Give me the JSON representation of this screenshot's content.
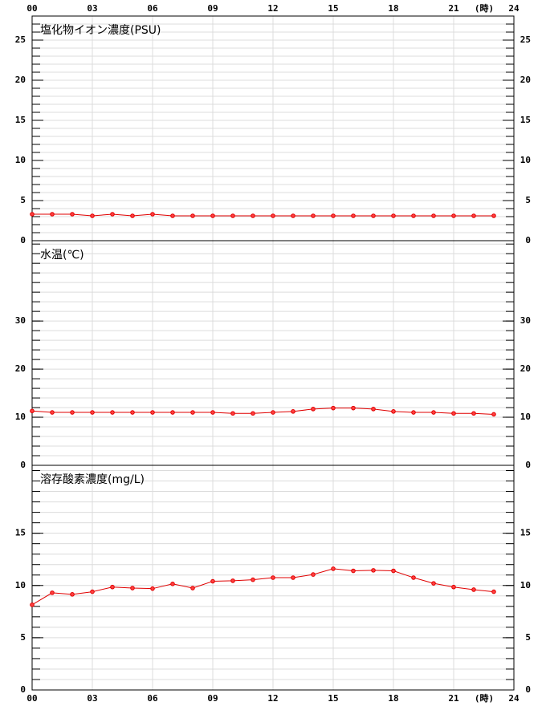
{
  "chart_data": [
    {
      "type": "line",
      "title": "塩化物イオン濃度(PSU)",
      "xlabel": "(時)",
      "x": [
        0,
        1,
        2,
        3,
        4,
        5,
        6,
        7,
        8,
        9,
        10,
        11,
        12,
        13,
        14,
        15,
        16,
        17,
        18,
        19,
        20,
        21,
        22,
        23
      ],
      "xlim": [
        0,
        24
      ],
      "xticks": [
        {
          "value": 0,
          "label": "00"
        },
        {
          "value": 3,
          "label": "03"
        },
        {
          "value": 6,
          "label": "06"
        },
        {
          "value": 9,
          "label": "09"
        },
        12,
        15,
        18,
        21,
        24
      ],
      "series": [
        {
          "color": "#e00000",
          "values": [
            3.3,
            3.3,
            3.3,
            3.1,
            3.3,
            3.1,
            3.3,
            3.1,
            3.1,
            3.1,
            3.1,
            3.1,
            3.1,
            3.1,
            3.1,
            3.1,
            3.1,
            3.1,
            3.1,
            3.1,
            3.1,
            3.1,
            3.1,
            3.1
          ]
        }
      ],
      "ylim": [
        0,
        28
      ],
      "yticks": [
        0,
        5,
        10,
        15,
        20,
        25
      ],
      "grid": true
    },
    {
      "type": "line",
      "title": "水温(℃)",
      "x": [
        0,
        1,
        2,
        3,
        4,
        5,
        6,
        7,
        8,
        9,
        10,
        11,
        12,
        13,
        14,
        15,
        16,
        17,
        18,
        19,
        20,
        21,
        22,
        23
      ],
      "xlim": [
        0,
        24
      ],
      "xticks": [
        {
          "value": 0,
          "label": "00"
        },
        {
          "value": 3,
          "label": "03"
        },
        {
          "value": 6,
          "label": "06"
        },
        {
          "value": 9,
          "label": "09"
        },
        12,
        15,
        18,
        21,
        24
      ],
      "series": [
        {
          "color": "#e00000",
          "values": [
            11.3,
            11.0,
            11.0,
            11.0,
            11.0,
            11.0,
            11.0,
            11.0,
            11.0,
            11.0,
            10.8,
            10.8,
            11.0,
            11.2,
            11.7,
            11.9,
            11.9,
            11.7,
            11.2,
            11.0,
            11.0,
            10.8,
            10.8,
            10.6
          ]
        }
      ],
      "ylim": [
        0,
        46.7
      ],
      "yticks": [
        0,
        10,
        20,
        30
      ],
      "grid": true
    },
    {
      "type": "line",
      "title": "溶存酸素濃度(mg/L)",
      "xlabel": "(時)",
      "x": [
        0,
        1,
        2,
        3,
        4,
        5,
        6,
        7,
        8,
        9,
        10,
        11,
        12,
        13,
        14,
        15,
        16,
        17,
        18,
        19,
        20,
        21,
        22,
        23
      ],
      "xlim": [
        0,
        24
      ],
      "xticks": [
        {
          "value": 0,
          "label": "00"
        },
        {
          "value": 3,
          "label": "03"
        },
        {
          "value": 6,
          "label": "06"
        },
        {
          "value": 9,
          "label": "09"
        },
        12,
        15,
        18,
        21,
        24
      ],
      "series": [
        {
          "color": "#e00000",
          "values": [
            8.15,
            9.3,
            9.15,
            9.4,
            9.85,
            9.75,
            9.7,
            10.15,
            9.75,
            10.4,
            10.45,
            10.55,
            10.75,
            10.75,
            11.05,
            11.6,
            11.4,
            11.45,
            11.4,
            10.75,
            10.2,
            9.85,
            9.6,
            9.4
          ]
        }
      ],
      "ylim": [
        0,
        21.5
      ],
      "yticks": [
        0,
        5,
        10,
        15
      ],
      "grid": true
    }
  ]
}
